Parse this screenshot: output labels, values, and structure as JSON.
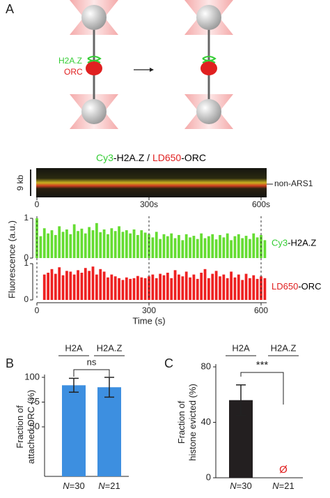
{
  "panel_labels": [
    "A",
    "B",
    "C"
  ],
  "diagram": {
    "labels": [
      "H2A.Z",
      "ORC"
    ],
    "label_colors": [
      "#33cc33",
      "#e02020"
    ]
  },
  "kymograph": {
    "title_parts": [
      {
        "text": "Cy3",
        "color": "#33cc33"
      },
      {
        "text": "-H2A.Z / ",
        "color": "#000000"
      },
      {
        "text": "LD650",
        "color": "#e02020"
      },
      {
        "text": "-ORC",
        "color": "#000000"
      }
    ],
    "scale_label": "9 kb",
    "track_label": "non-ARS1",
    "xticks": [
      0,
      {
        "value": 300,
        "label": "300s"
      },
      {
        "value": 600,
        "label": "600s"
      }
    ]
  },
  "chart_data": [
    {
      "type": "bar",
      "ylabel": "Fluorescence (a.u.)",
      "label_parts": [
        {
          "text": "Cy3",
          "color": "#33cc33"
        },
        {
          "text": "-H2A.Z",
          "color": "#000000"
        }
      ],
      "color": "#66dd33",
      "x": [
        0,
        10,
        20,
        30,
        40,
        50,
        60,
        70,
        80,
        90,
        100,
        110,
        120,
        130,
        140,
        150,
        160,
        170,
        180,
        190,
        200,
        210,
        220,
        230,
        240,
        250,
        260,
        270,
        280,
        290,
        300,
        310,
        320,
        330,
        340,
        350,
        360,
        370,
        380,
        390,
        400,
        410,
        420,
        430,
        440,
        450,
        460,
        470,
        480,
        490,
        500,
        510,
        520,
        530,
        540,
        550,
        560,
        570,
        580,
        590,
        600,
        610
      ],
      "values": [
        1.0,
        0.55,
        0.75,
        0.62,
        0.7,
        0.58,
        0.8,
        0.66,
        0.72,
        0.6,
        0.85,
        0.68,
        0.74,
        0.62,
        0.78,
        0.7,
        0.88,
        0.65,
        0.72,
        0.6,
        0.75,
        0.68,
        0.8,
        0.66,
        0.7,
        0.62,
        0.72,
        0.58,
        0.7,
        0.64,
        0.6,
        0.52,
        0.66,
        0.48,
        0.6,
        0.55,
        0.62,
        0.5,
        0.58,
        0.45,
        0.6,
        0.52,
        0.56,
        0.48,
        0.62,
        0.5,
        0.55,
        0.6,
        0.47,
        0.58,
        0.52,
        0.62,
        0.45,
        0.55,
        0.6,
        0.5,
        0.56,
        0.48,
        0.62,
        0.52,
        0.58,
        0.45
      ],
      "xlim": [
        0,
        615
      ],
      "ylim": [
        0,
        1
      ],
      "yticks": [
        0,
        1
      ]
    },
    {
      "type": "bar",
      "xlabel": "Time (s)",
      "label_parts": [
        {
          "text": "LD650",
          "color": "#e02020"
        },
        {
          "text": "-ORC",
          "color": "#000000"
        }
      ],
      "color": "#ee2222",
      "x": [
        0,
        10,
        20,
        30,
        40,
        50,
        60,
        70,
        80,
        90,
        100,
        110,
        120,
        130,
        140,
        150,
        160,
        170,
        180,
        190,
        200,
        210,
        220,
        230,
        240,
        250,
        260,
        270,
        280,
        290,
        300,
        310,
        320,
        330,
        340,
        350,
        360,
        370,
        380,
        390,
        400,
        410,
        420,
        430,
        440,
        450,
        460,
        470,
        480,
        490,
        500,
        510,
        520,
        530,
        540,
        550,
        560,
        570,
        580,
        590,
        600,
        610
      ],
      "values": [
        0,
        0,
        0.7,
        0.75,
        0.85,
        0.72,
        0.9,
        0.68,
        0.8,
        0.78,
        0.7,
        0.82,
        0.75,
        0.88,
        0.8,
        0.92,
        0.7,
        0.85,
        0.78,
        0.62,
        0.7,
        0.65,
        0.6,
        0.55,
        0.62,
        0.58,
        0.6,
        0.66,
        0.62,
        0.6,
        0.65,
        0.7,
        0.6,
        0.72,
        0.68,
        0.75,
        0.6,
        0.82,
        0.7,
        0.65,
        0.78,
        0.62,
        0.7,
        0.58,
        0.75,
        0.85,
        0.6,
        0.72,
        0.8,
        0.65,
        0.7,
        0.6,
        0.78,
        0.62,
        0.7,
        0.55,
        0.72,
        0.6,
        0.68,
        0.58,
        0.65,
        0.6
      ],
      "xlim": [
        0,
        615
      ],
      "ylim": [
        0,
        1
      ],
      "yticks": [
        0,
        1
      ],
      "xticks": [
        0,
        300,
        600
      ],
      "vlines": [
        0,
        300,
        600
      ]
    },
    {
      "type": "errorbar",
      "ylabel": [
        "Fraction of",
        "attached ORC (%)"
      ],
      "categories": [
        "H2A",
        "H2A.Z"
      ],
      "values": [
        92,
        90
      ],
      "errors": [
        7,
        10
      ],
      "color": "#3d8fe0",
      "ylim": [
        0,
        100
      ],
      "yticks": [
        50,
        75,
        100
      ],
      "n_symbol": "N",
      "n_counts": [
        "=30",
        "=21"
      ],
      "significance": "ns"
    },
    {
      "type": "errorbar",
      "ylabel": [
        "Fraction of",
        "histone evicted (%)"
      ],
      "categories": [
        "H2A",
        "H2A.Z"
      ],
      "values": [
        56,
        null
      ],
      "errors": [
        11,
        null
      ],
      "color": "#231f20",
      "ylim": [
        0,
        80
      ],
      "yticks": [
        0,
        40,
        80
      ],
      "n_symbol": "N",
      "n_counts": [
        "=30",
        "=21"
      ],
      "significance": "***",
      "annotation": "Ø",
      "annotation_color": "#e02020"
    }
  ]
}
